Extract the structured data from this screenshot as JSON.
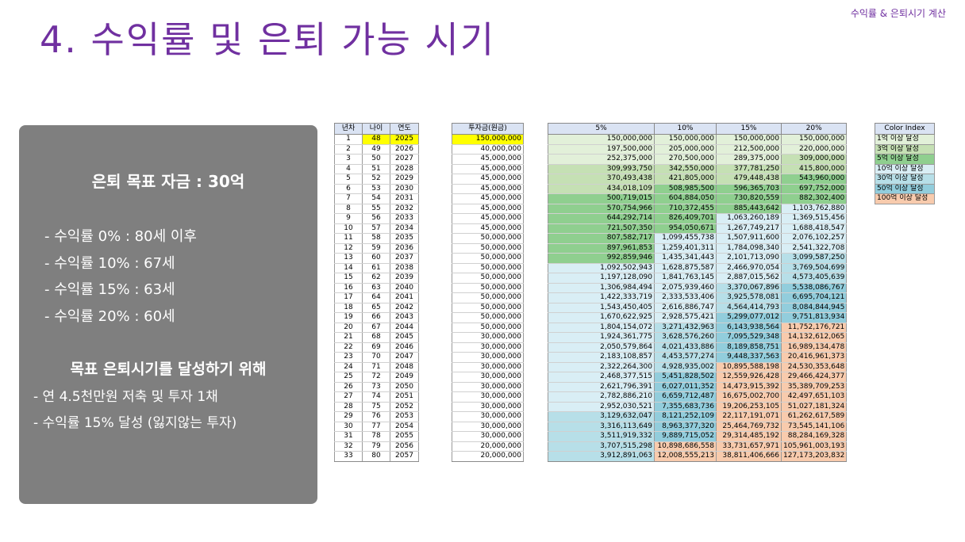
{
  "header": {
    "top_label": "수익률 & 은퇴시기 계산",
    "title": "4. 수익률 및 은퇴 가능 시기"
  },
  "goal_box": {
    "title": "은퇴 목표 자금 : 30억",
    "rates": [
      "- 수익률  0% : 80세 이후",
      "- 수익률 10% : 67세",
      "- 수익률 15% : 63세",
      "- 수익률 20% : 60세"
    ],
    "action_title": "목표 은퇴시기를 달성하기 위해",
    "actions": [
      "- 연 4.5천만원 저축 및 투자 1채",
      "- 수익률 15% 달성 (잃지않는 투자)"
    ]
  },
  "table": {
    "headers_left": [
      "년차",
      "나이",
      "연도"
    ],
    "header_invest": "투자금(원금)",
    "headers_rates": [
      "5%",
      "10%",
      "15%",
      "20%"
    ],
    "rows": [
      [
        "1",
        "48",
        "2025",
        "150,000,000",
        "150,000,000",
        "150,000,000",
        "150,000,000",
        "150,000,000"
      ],
      [
        "2",
        "49",
        "2026",
        "40,000,000",
        "197,500,000",
        "205,000,000",
        "212,500,000",
        "220,000,000"
      ],
      [
        "3",
        "50",
        "2027",
        "45,000,000",
        "252,375,000",
        "270,500,000",
        "289,375,000",
        "309,000,000"
      ],
      [
        "4",
        "51",
        "2028",
        "45,000,000",
        "309,993,750",
        "342,550,000",
        "377,781,250",
        "415,800,000"
      ],
      [
        "5",
        "52",
        "2029",
        "45,000,000",
        "370,493,438",
        "421,805,000",
        "479,448,438",
        "543,960,000"
      ],
      [
        "6",
        "53",
        "2030",
        "45,000,000",
        "434,018,109",
        "508,985,500",
        "596,365,703",
        "697,752,000"
      ],
      [
        "7",
        "54",
        "2031",
        "45,000,000",
        "500,719,015",
        "604,884,050",
        "730,820,559",
        "882,302,400"
      ],
      [
        "8",
        "55",
        "2032",
        "45,000,000",
        "570,754,966",
        "710,372,455",
        "885,443,642",
        "1,103,762,880"
      ],
      [
        "9",
        "56",
        "2033",
        "45,000,000",
        "644,292,714",
        "826,409,701",
        "1,063,260,189",
        "1,369,515,456"
      ],
      [
        "10",
        "57",
        "2034",
        "45,000,000",
        "721,507,350",
        "954,050,671",
        "1,267,749,217",
        "1,688,418,547"
      ],
      [
        "11",
        "58",
        "2035",
        "50,000,000",
        "807,582,717",
        "1,099,455,738",
        "1,507,911,600",
        "2,076,102,257"
      ],
      [
        "12",
        "59",
        "2036",
        "50,000,000",
        "897,961,853",
        "1,259,401,311",
        "1,784,098,340",
        "2,541,322,708"
      ],
      [
        "13",
        "60",
        "2037",
        "50,000,000",
        "992,859,946",
        "1,435,341,443",
        "2,101,713,090",
        "3,099,587,250"
      ],
      [
        "14",
        "61",
        "2038",
        "50,000,000",
        "1,092,502,943",
        "1,628,875,587",
        "2,466,970,054",
        "3,769,504,699"
      ],
      [
        "15",
        "62",
        "2039",
        "50,000,000",
        "1,197,128,090",
        "1,841,763,145",
        "2,887,015,562",
        "4,573,405,639"
      ],
      [
        "16",
        "63",
        "2040",
        "50,000,000",
        "1,306,984,494",
        "2,075,939,460",
        "3,370,067,896",
        "5,538,086,767"
      ],
      [
        "17",
        "64",
        "2041",
        "50,000,000",
        "1,422,333,719",
        "2,333,533,406",
        "3,925,578,081",
        "6,695,704,121"
      ],
      [
        "18",
        "65",
        "2042",
        "50,000,000",
        "1,543,450,405",
        "2,616,886,747",
        "4,564,414,793",
        "8,084,844,945"
      ],
      [
        "19",
        "66",
        "2043",
        "50,000,000",
        "1,670,622,925",
        "2,928,575,421",
        "5,299,077,012",
        "9,751,813,934"
      ],
      [
        "20",
        "67",
        "2044",
        "50,000,000",
        "1,804,154,072",
        "3,271,432,963",
        "6,143,938,564",
        "11,752,176,721"
      ],
      [
        "21",
        "68",
        "2045",
        "30,000,000",
        "1,924,361,775",
        "3,628,576,260",
        "7,095,529,348",
        "14,132,612,065"
      ],
      [
        "22",
        "69",
        "2046",
        "30,000,000",
        "2,050,579,864",
        "4,021,433,886",
        "8,189,858,751",
        "16,989,134,478"
      ],
      [
        "23",
        "70",
        "2047",
        "30,000,000",
        "2,183,108,857",
        "4,453,577,274",
        "9,448,337,563",
        "20,416,961,373"
      ],
      [
        "24",
        "71",
        "2048",
        "30,000,000",
        "2,322,264,300",
        "4,928,935,002",
        "10,895,588,198",
        "24,530,353,648"
      ],
      [
        "25",
        "72",
        "2049",
        "30,000,000",
        "2,468,377,515",
        "5,451,828,502",
        "12,559,926,428",
        "29,466,424,377"
      ],
      [
        "26",
        "73",
        "2050",
        "30,000,000",
        "2,621,796,391",
        "6,027,011,352",
        "14,473,915,392",
        "35,389,709,253"
      ],
      [
        "27",
        "74",
        "2051",
        "30,000,000",
        "2,782,886,210",
        "6,659,712,487",
        "16,675,002,700",
        "42,497,651,103"
      ],
      [
        "28",
        "75",
        "2052",
        "30,000,000",
        "2,952,030,521",
        "7,355,683,736",
        "19,206,253,105",
        "51,027,181,324"
      ],
      [
        "29",
        "76",
        "2053",
        "30,000,000",
        "3,129,632,047",
        "8,121,252,109",
        "22,117,191,071",
        "61,262,617,589"
      ],
      [
        "30",
        "77",
        "2054",
        "30,000,000",
        "3,316,113,649",
        "8,963,377,320",
        "25,464,769,732",
        "73,545,141,106"
      ],
      [
        "31",
        "78",
        "2055",
        "30,000,000",
        "3,511,919,332",
        "9,889,715,052",
        "29,314,485,192",
        "88,284,169,328"
      ],
      [
        "32",
        "79",
        "2056",
        "20,000,000",
        "3,707,515,298",
        "10,898,686,558",
        "33,731,657,971",
        "105,961,003,193"
      ],
      [
        "33",
        "80",
        "2057",
        "20,000,000",
        "3,912,891,063",
        "12,008,555,213",
        "38,811,406,666",
        "127,173,203,832"
      ]
    ]
  },
  "color_index": {
    "header": "Color Index",
    "items": [
      {
        "label": "1억 이상 달성",
        "color": "#e2f0d9"
      },
      {
        "label": "3억 이상 달성",
        "color": "#c5e0b4"
      },
      {
        "label": "5억 이상 달성",
        "color": "#8fcf8f"
      },
      {
        "label": "10억 이상 달성",
        "color": "#d9eef5"
      },
      {
        "label": "30억 이상 달성",
        "color": "#b7dfe8"
      },
      {
        "label": "50억 이상 달성",
        "color": "#92cddc"
      },
      {
        "label": "100억 이상 달성",
        "color": "#f8cbad"
      }
    ]
  },
  "colors": {
    "title": "#7030a0",
    "goal_box_bg": "#7f7f7f",
    "header_bg": "#dae3f3",
    "highlight": "#ffff00"
  }
}
